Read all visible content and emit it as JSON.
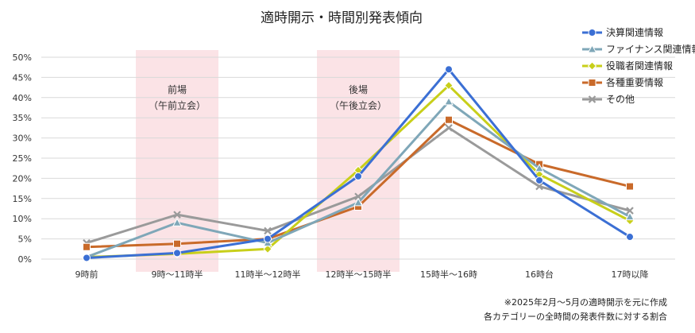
{
  "chart_data": {
    "type": "line",
    "title": "適時開示・時間別発表傾向",
    "categories": [
      "9時前",
      "9時～11時半",
      "11時半～12時半",
      "12時半～15時半",
      "15時半～16時",
      "16時台",
      "17時以降"
    ],
    "yticks": [
      "0%",
      "5%",
      "10%",
      "15%",
      "20%",
      "25%",
      "30%",
      "35%",
      "40%",
      "45%",
      "50%"
    ],
    "ylim": [
      0,
      50
    ],
    "grid": true,
    "legend_position": "top-right",
    "series": [
      {
        "name": "決算関連情報",
        "color": "#3b6fd4",
        "marker": "circle",
        "values": [
          0.3,
          1.5,
          5.0,
          20.5,
          47.0,
          19.5,
          5.5
        ]
      },
      {
        "name": "ファイナンス関連情報",
        "color": "#7fa7b8",
        "marker": "triangle",
        "values": [
          0.5,
          9.0,
          4.0,
          14.0,
          39.0,
          22.5,
          10.5
        ]
      },
      {
        "name": "役職者関連情報",
        "color": "#c8cf1a",
        "marker": "diamond",
        "values": [
          0.5,
          1.3,
          2.5,
          22.0,
          43.0,
          21.0,
          9.5
        ]
      },
      {
        "name": "各種重要情報",
        "color": "#c96a2a",
        "marker": "square",
        "values": [
          3.0,
          3.8,
          5.0,
          13.0,
          34.5,
          23.5,
          18.0
        ]
      },
      {
        "name": "その他",
        "color": "#9a9a9a",
        "marker": "cross",
        "values": [
          4.0,
          11.0,
          7.0,
          15.5,
          32.5,
          18.0,
          12.0
        ]
      }
    ],
    "bands": [
      {
        "category_index": 1,
        "title": "前場",
        "subtitle": "（午前立会）"
      },
      {
        "category_index": 3,
        "title": "後場",
        "subtitle": "（午後立会）"
      }
    ],
    "notes": [
      "※2025年2月～5月の適時開示を元に作成",
      "各カテゴリーの全時間の発表件数に対する割合"
    ]
  }
}
